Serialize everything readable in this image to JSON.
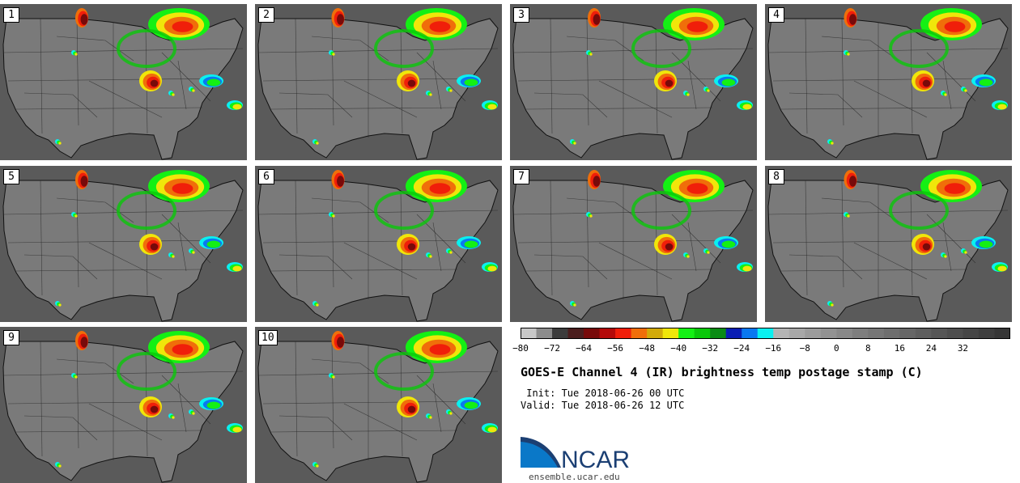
{
  "panels": [
    {
      "label": "1"
    },
    {
      "label": "2"
    },
    {
      "label": "3"
    },
    {
      "label": "4"
    },
    {
      "label": "5"
    },
    {
      "label": "6"
    },
    {
      "label": "7"
    },
    {
      "label": "8"
    },
    {
      "label": "9"
    },
    {
      "label": "10"
    }
  ],
  "colorbar": {
    "ticks": [
      "−80",
      "−72",
      "−64",
      "−56",
      "−48",
      "−40",
      "−32",
      "−24",
      "−16",
      "−8",
      "0",
      "8",
      "16",
      "24",
      "32"
    ],
    "colors": [
      "#c8c8c8",
      "#8c8c8c",
      "#3c3c3c",
      "#4b1e1e",
      "#780a0a",
      "#b40a0a",
      "#f01e0a",
      "#f06e0a",
      "#d2aa0a",
      "#f0e60a",
      "#14f014",
      "#0ac80a",
      "#0a8c14",
      "#0a1eb4",
      "#0a78f0",
      "#0af0f0",
      "#b4b4b4",
      "#a8a8a8",
      "#9c9c9c",
      "#929292",
      "#888888",
      "#7e7e7e",
      "#767676",
      "#6e6e6e",
      "#666666",
      "#5e5e5e",
      "#565656",
      "#4e4e4e",
      "#464646",
      "#3e3e3e",
      "#363636"
    ]
  },
  "title": "GOES-E Channel 4 (IR) brightness temp postage stamp (C)",
  "init": " Init: Tue 2018-06-26 00 UTC",
  "valid": "Valid: Tue 2018-06-26 12 UTC",
  "logo": {
    "text": "NCAR",
    "colors": {
      "text": "#1b3f73",
      "swoosh": "#0a78c8"
    }
  },
  "site": "ensemble.ucar.edu"
}
